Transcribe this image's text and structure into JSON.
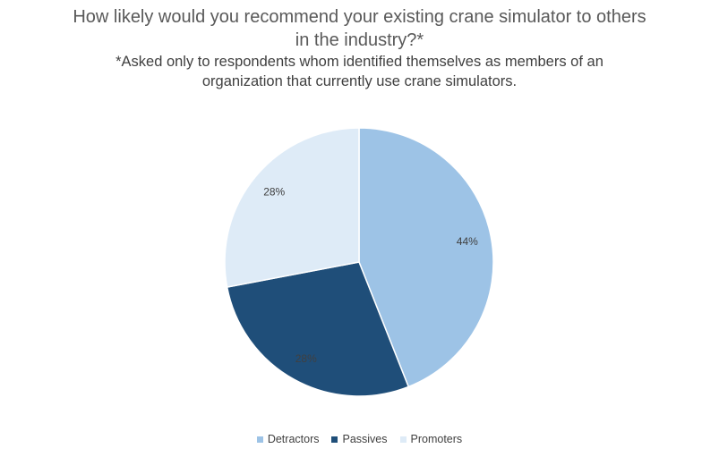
{
  "chart_data": {
    "type": "pie",
    "title_lines": [
      "How likely would you recommend your existing crane simulator to others",
      "in the industry?*"
    ],
    "subtitle_lines": [
      "*Asked only to respondents whom identified themselves as members of an",
      "organization that currently use crane simulators."
    ],
    "slices": [
      {
        "label": "Detractors",
        "value": 44,
        "display": "44%",
        "color": "#9dc3e6"
      },
      {
        "label": "Passives",
        "value": 28,
        "display": "28%",
        "color": "#1f4e79"
      },
      {
        "label": "Promoters",
        "value": 28,
        "display": "28%",
        "color": "#deebf7"
      }
    ],
    "data_label_color_light": "#404040",
    "data_label_color_dark": "#404040",
    "legend_position": "bottom"
  }
}
